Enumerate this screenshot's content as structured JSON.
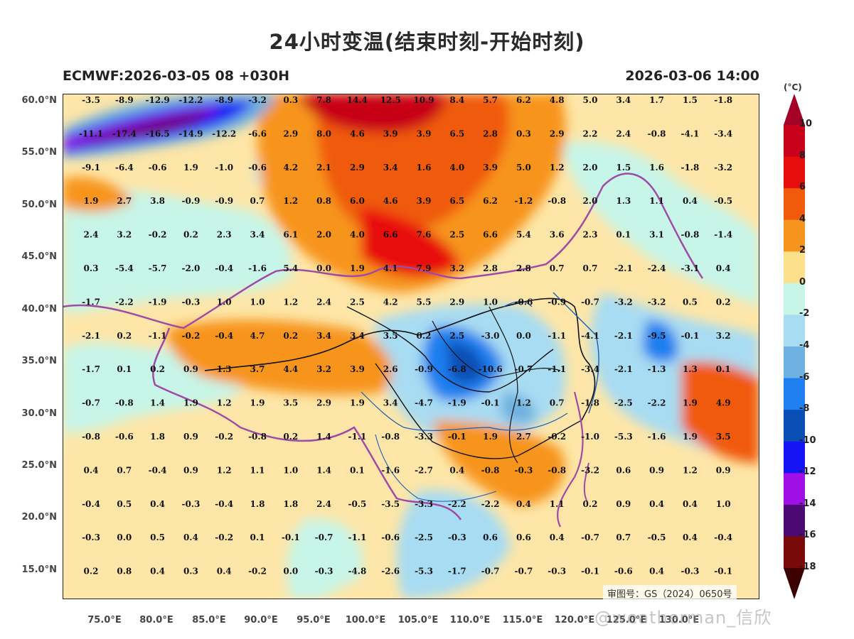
{
  "title": "24小时变温(结束时刻-开始时刻)",
  "subtitle_left": "ECMWF:2026-03-05 08 +030H",
  "subtitle_right": "2026-03-06 14:00",
  "review_number": "审图号：GS（2024）0650号",
  "watermark": "@weatherman_信欣",
  "colorbar": {
    "unit": "(°C)",
    "levels": [
      "10",
      "8",
      "6",
      "4",
      "2",
      "0",
      "-2",
      "-4",
      "-6",
      "-8",
      "-10",
      "-12",
      "-14",
      "-16",
      "-18"
    ],
    "colors": [
      "#a50026",
      "#c80019",
      "#e80d0d",
      "#f05a0a",
      "#f7941d",
      "#fde08b",
      "#c7f5e8",
      "#a8dcf2",
      "#6fb1e0",
      "#1f7ff0",
      "#0a4fb5",
      "#1414f5",
      "#a010e6",
      "#4b0a73",
      "#7a0a0a",
      "#3c0000"
    ]
  },
  "map": {
    "lat_labels": [
      "60.0°N",
      "55.0°N",
      "50.0°N",
      "45.0°N",
      "40.0°N",
      "35.0°N",
      "30.0°N",
      "25.0°N",
      "20.0°N",
      "15.0°N"
    ],
    "lon_labels": [
      "75.0°E",
      "80.0°E",
      "85.0°E",
      "90.0°E",
      "95.0°E",
      "100.0°E",
      "105.0°E",
      "110.0°E",
      "115.0°E",
      "120.0°E",
      "125.0°E",
      "130.0°E"
    ],
    "grid_rows": [
      [
        "-3.5",
        "-8.9",
        "-12.9",
        "-12.2",
        "-8.9",
        "-3.2",
        "0.3",
        "7.8",
        "14.4",
        "12.5",
        "10.9",
        "8.4",
        "5.7",
        "6.2",
        "4.8",
        "5.0",
        "3.4",
        "1.7",
        "1.5",
        "-1.8"
      ],
      [
        "-11.1",
        "-17.4",
        "-16.5",
        "-14.9",
        "-12.2",
        "-6.6",
        "2.9",
        "8.0",
        "4.6",
        "3.9",
        "3.9",
        "6.5",
        "2.8",
        "0.3",
        "2.9",
        "2.2",
        "2.4",
        "-0.8",
        "-4.1",
        "-3.4"
      ],
      [
        "-9.1",
        "-6.4",
        "-0.6",
        "1.9",
        "-1.0",
        "-0.6",
        "4.2",
        "2.1",
        "2.9",
        "3.4",
        "1.6",
        "4.0",
        "3.9",
        "5.0",
        "1.2",
        "2.0",
        "1.5",
        "1.6",
        "-1.8",
        "-3.2"
      ],
      [
        "1.9",
        "2.7",
        "3.8",
        "-0.9",
        "-0.9",
        "0.7",
        "1.2",
        "0.8",
        "6.0",
        "4.6",
        "3.9",
        "6.5",
        "6.2",
        "-1.2",
        "-0.8",
        "2.0",
        "1.3",
        "1.1",
        "0.4",
        "-0.5"
      ],
      [
        "2.4",
        "3.2",
        "-0.2",
        "0.2",
        "2.3",
        "3.4",
        "6.1",
        "2.0",
        "4.0",
        "6.6",
        "7.6",
        "2.5",
        "6.6",
        "5.4",
        "3.6",
        "2.3",
        "0.1",
        "3.1",
        "-0.8",
        "-1.4"
      ],
      [
        "0.3",
        "-5.4",
        "-5.7",
        "-2.0",
        "-0.4",
        "-1.6",
        "5.4",
        "0.0",
        "1.9",
        "4.1",
        "7.9",
        "3.2",
        "2.8",
        "2.8",
        "0.7",
        "0.7",
        "-2.1",
        "-2.4",
        "-3.1",
        "0.4"
      ],
      [
        "-1.7",
        "-2.2",
        "-1.9",
        "-0.3",
        "1.0",
        "1.0",
        "1.2",
        "2.4",
        "2.5",
        "4.2",
        "5.5",
        "2.9",
        "1.0",
        "-0.6",
        "-0.9",
        "-0.7",
        "-3.2",
        "-3.2",
        "0.5",
        "0.2"
      ],
      [
        "-2.1",
        "0.2",
        "-1.1",
        "-0.2",
        "-0.4",
        "4.7",
        "0.2",
        "3.4",
        "3.4",
        "3.5",
        "0.2",
        "2.5",
        "-3.0",
        "0.0",
        "-1.1",
        "-4.1",
        "-2.1",
        "-9.5",
        "-0.1",
        "3.2"
      ],
      [
        "-1.7",
        "0.1",
        "0.2",
        "0.9",
        "1.3",
        "3.7",
        "4.4",
        "3.2",
        "3.9",
        "2.6",
        "-0.9",
        "-6.8",
        "-10.6",
        "-0.7",
        "-1.1",
        "-3.4",
        "-2.1",
        "-1.3",
        "1.3",
        "0.1"
      ],
      [
        "-0.7",
        "-0.8",
        "1.4",
        "1.9",
        "1.2",
        "1.9",
        "3.5",
        "2.9",
        "1.9",
        "3.4",
        "-4.7",
        "-1.9",
        "-0.1",
        "1.2",
        "0.7",
        "-1.8",
        "-2.5",
        "-2.2",
        "1.9",
        "4.9"
      ],
      [
        "-0.8",
        "-0.6",
        "1.8",
        "0.9",
        "-0.2",
        "-0.8",
        "0.2",
        "1.4",
        "-1.1",
        "-0.8",
        "-3.3",
        "-0.1",
        "1.9",
        "2.7",
        "-0.2",
        "-1.0",
        "-5.3",
        "-1.6",
        "1.9",
        "3.5"
      ],
      [
        "0.4",
        "0.7",
        "-0.4",
        "0.9",
        "1.2",
        "1.1",
        "1.0",
        "1.4",
        "0.1",
        "-1.6",
        "-2.7",
        "0.4",
        "-0.8",
        "-0.3",
        "-0.8",
        "-3.2",
        "0.6",
        "0.9",
        "1.2",
        "0.9"
      ],
      [
        "-0.4",
        "0.5",
        "0.4",
        "-0.3",
        "-0.4",
        "1.8",
        "1.8",
        "2.4",
        "-0.5",
        "-3.5",
        "-3.3",
        "-2.2",
        "-2.2",
        "0.4",
        "1.1",
        "0.2",
        "0.9",
        "0.4",
        "0.4",
        "1.0"
      ],
      [
        "-0.3",
        "0.0",
        "0.5",
        "0.4",
        "-0.2",
        "0.1",
        "-0.1",
        "-0.7",
        "-1.1",
        "-0.6",
        "-2.5",
        "-0.3",
        "0.6",
        "0.6",
        "0.4",
        "-0.7",
        "0.7",
        "-0.5",
        "0.4",
        "-0.4"
      ],
      [
        "0.2",
        "0.8",
        "0.4",
        "0.3",
        "0.4",
        "-0.2",
        "0.0",
        "-0.3",
        "-4.8",
        "-2.6",
        "-5.3",
        "-1.7",
        "-0.7",
        "-0.7",
        "-0.3",
        "-0.1",
        "-0.6",
        "0.4",
        "-0.3",
        "-0.1"
      ]
    ]
  }
}
